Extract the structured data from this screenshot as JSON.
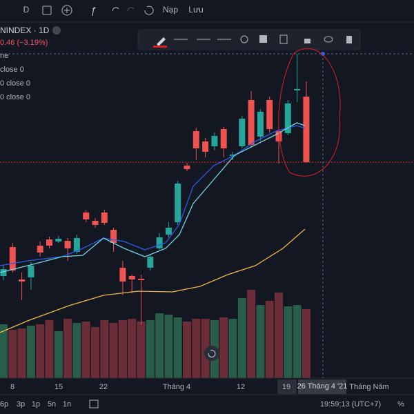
{
  "toolbar": {
    "interval": "D",
    "load": "Nạp",
    "save": "Lưu"
  },
  "legend": {
    "symbol": "NINDEX · 1D",
    "change": "0.46 (−3.19%)",
    "rows": [
      "ne",
      "close 0",
      "0 close 0",
      "0 close 0"
    ]
  },
  "time_axis": {
    "labels": [
      "8",
      "15",
      "22",
      "Tháng 4",
      "12",
      "19",
      "26 Tháng 4 '21",
      "Tháng Năm"
    ]
  },
  "bottom_bar": {
    "ranges": [
      "6p",
      "3p",
      "1p",
      "5n",
      "1n"
    ],
    "clock": "19:59:13 (UTC+7)",
    "percent": "%"
  }
}
